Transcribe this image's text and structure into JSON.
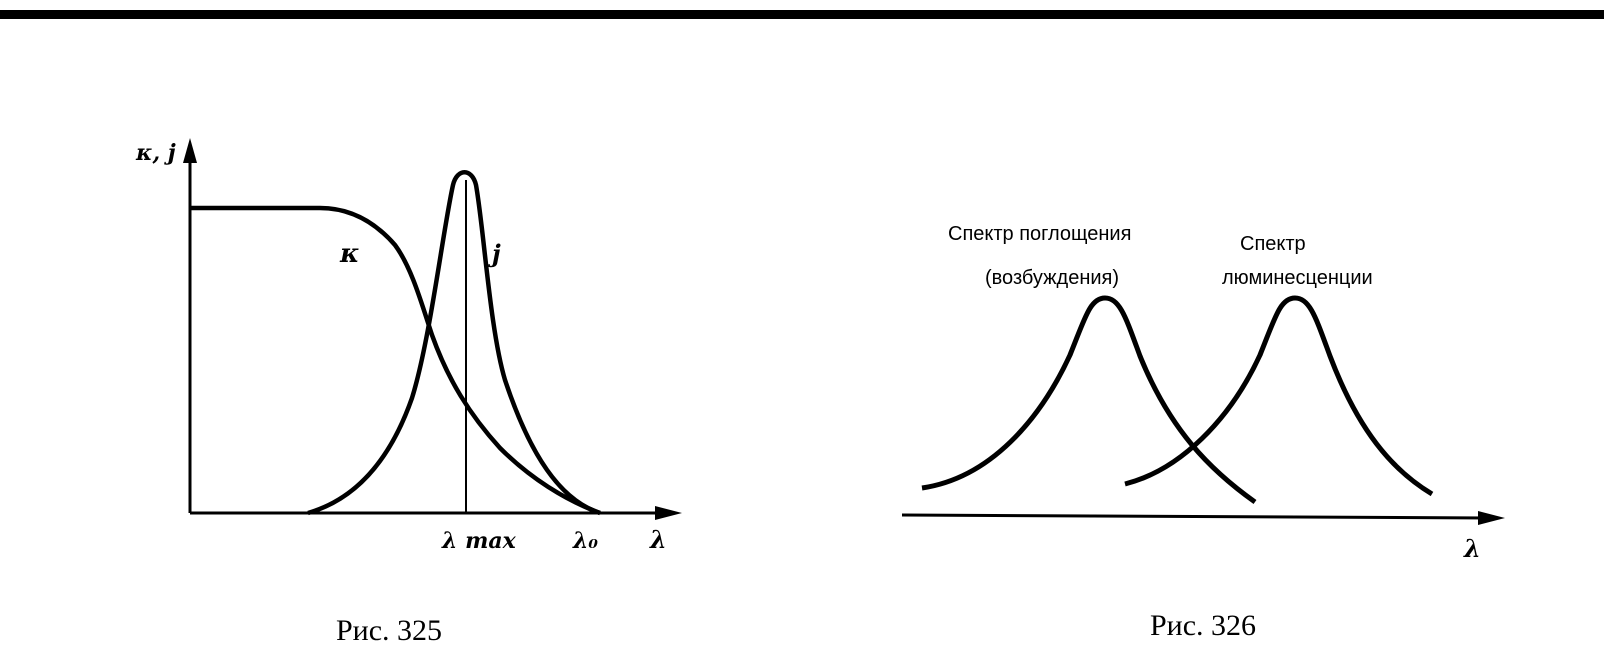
{
  "fig325": {
    "axis_y_label": "κ, j",
    "curve_kappa_label": "κ",
    "curve_j_label": "j",
    "tick_lambda_max": "λ max",
    "tick_lambda_0": "λ₀",
    "axis_x_label": "λ",
    "caption": "Рис. 325"
  },
  "fig326": {
    "absorption_label_line1": "Спектр поглощения",
    "absorption_label_line2": "(возбуждения)",
    "luminescence_label_line1": "Спектр",
    "luminescence_label_line2": "люминесценции",
    "axis_x_label": "λ",
    "caption": "Рис. 326"
  }
}
